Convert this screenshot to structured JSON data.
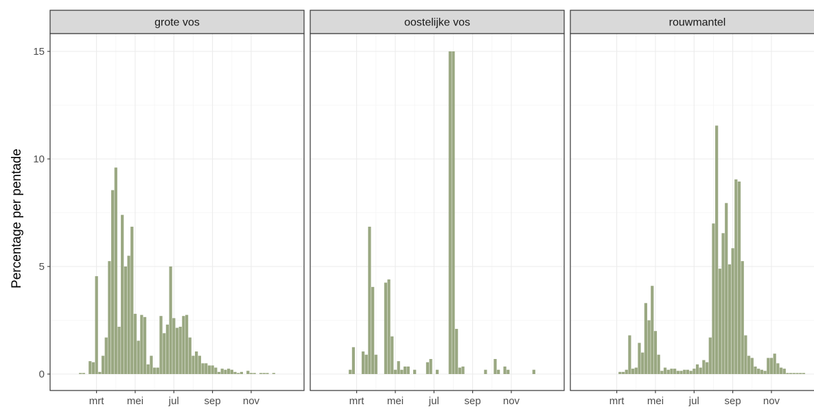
{
  "colors": {
    "bar": "#9aa882",
    "strip_fill": "#d9d9d9",
    "border": "#333333",
    "grid_major": "#ebebeb",
    "grid_minor": "#f5f5f5"
  },
  "chart_data": {
    "type": "bar",
    "facet": "horizontal",
    "ylabel": "Percentage per pentade",
    "ylim": [
      0,
      16
    ],
    "yticks": [
      0,
      5,
      10,
      15
    ],
    "xticks": [
      "mrt",
      "mei",
      "jul",
      "sep",
      "nov"
    ],
    "x_unit": "pentade (1-73)",
    "grid": true,
    "panels": [
      {
        "name": "grote vos",
        "x": [
          7,
          8,
          9,
          10,
          11,
          12,
          13,
          14,
          15,
          16,
          17,
          18,
          19,
          20,
          21,
          22,
          23,
          24,
          25,
          26,
          27,
          28,
          29,
          30,
          31,
          32,
          33,
          34,
          35,
          36,
          37,
          38,
          39,
          40,
          41,
          42,
          43,
          44,
          45,
          46,
          47,
          48,
          49,
          50,
          51,
          52,
          53,
          54,
          55,
          56,
          57,
          58,
          59,
          60,
          61,
          62,
          63,
          64,
          65,
          66,
          67,
          68,
          69,
          70
        ],
        "values": [
          0.05,
          0.05,
          0.0,
          0.6,
          0.55,
          4.55,
          0.1,
          0.85,
          1.7,
          5.25,
          8.55,
          9.6,
          2.2,
          7.4,
          5.0,
          5.5,
          6.85,
          2.8,
          1.55,
          2.75,
          2.65,
          0.45,
          0.85,
          0.3,
          0.3,
          2.7,
          1.9,
          2.3,
          5.0,
          2.6,
          2.15,
          2.2,
          2.7,
          2.75,
          1.7,
          0.85,
          1.05,
          0.85,
          0.5,
          0.5,
          0.4,
          0.4,
          0.3,
          0.1,
          0.25,
          0.2,
          0.25,
          0.2,
          0.1,
          0.05,
          0.1,
          0.0,
          0.15,
          0.05,
          0.05,
          0.0,
          0.05,
          0.05,
          0.05,
          0.0,
          0.05,
          0.0,
          0.0,
          0.0
        ]
      },
      {
        "name": "oostelijke vos",
        "x": [
          10,
          11,
          12,
          13,
          14,
          15,
          16,
          17,
          18,
          19,
          20,
          21,
          22,
          23,
          24,
          25,
          26,
          27,
          28,
          29,
          30,
          31,
          32,
          33,
          34,
          35,
          36,
          37,
          38,
          39,
          40,
          41,
          42,
          43,
          44,
          45,
          46,
          47,
          48,
          49,
          50,
          51,
          52,
          53,
          54,
          55,
          56,
          57,
          58,
          59,
          60,
          61,
          62,
          63,
          64,
          65,
          66,
          67,
          68
        ],
        "values": [
          0.2,
          1.25,
          0.0,
          0.0,
          1.05,
          0.9,
          6.85,
          4.05,
          0.9,
          0.0,
          0.0,
          4.25,
          4.4,
          1.75,
          0.2,
          0.6,
          0.2,
          0.35,
          0.35,
          0.0,
          0.2,
          0.0,
          0.0,
          0.0,
          0.55,
          0.7,
          0.0,
          0.2,
          0.0,
          0.0,
          0.0,
          15.0,
          15.0,
          2.1,
          0.3,
          0.35,
          0.0,
          0.0,
          0.0,
          0.0,
          0.0,
          0.0,
          0.2,
          0.0,
          0.0,
          0.7,
          0.2,
          0.0,
          0.35,
          0.2,
          0.0,
          0.0,
          0.0,
          0.0,
          0.0,
          0.0,
          0.0,
          0.2,
          0.0
        ]
      },
      {
        "name": "rouwmantel",
        "x": [
          13,
          14,
          15,
          16,
          17,
          18,
          19,
          20,
          21,
          22,
          23,
          24,
          25,
          26,
          27,
          28,
          29,
          30,
          31,
          32,
          33,
          34,
          35,
          36,
          37,
          38,
          39,
          40,
          41,
          42,
          43,
          44,
          45,
          46,
          47,
          48,
          49,
          50,
          51,
          52,
          53,
          54,
          55,
          56,
          57,
          58,
          59,
          60,
          61,
          62,
          63,
          64,
          65,
          66,
          67,
          68,
          69,
          70,
          71,
          72,
          73
        ],
        "values": [
          0.1,
          0.1,
          0.2,
          1.8,
          0.25,
          0.3,
          1.45,
          1.0,
          3.3,
          2.5,
          4.1,
          2.0,
          0.9,
          0.15,
          0.3,
          0.2,
          0.25,
          0.25,
          0.15,
          0.15,
          0.2,
          0.2,
          0.15,
          0.25,
          0.45,
          0.3,
          0.65,
          0.55,
          1.7,
          7.0,
          11.55,
          4.9,
          6.55,
          7.95,
          5.1,
          5.85,
          9.05,
          8.95,
          5.25,
          1.8,
          0.85,
          0.75,
          0.35,
          0.25,
          0.2,
          0.15,
          0.75,
          0.75,
          0.95,
          0.5,
          0.3,
          0.25,
          0.05,
          0.05,
          0.05,
          0.05,
          0.05,
          0.05,
          0.0,
          0.0,
          0.0
        ]
      }
    ]
  }
}
